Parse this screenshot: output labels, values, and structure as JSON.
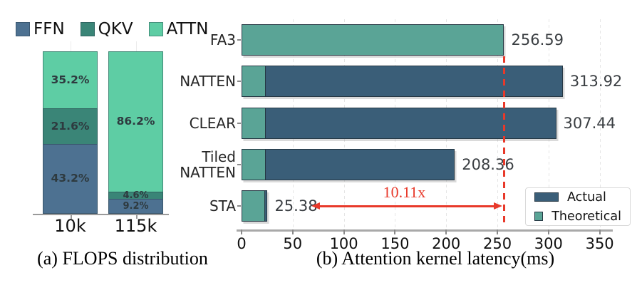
{
  "figure": {
    "background": "#ffffff"
  },
  "chart_data": [
    {
      "id": "flops-distribution",
      "type": "bar",
      "stacked": true,
      "orientation": "vertical",
      "title": "(a) FLOPS distribution",
      "categories": [
        "10k",
        "115k"
      ],
      "series": [
        {
          "name": "FFN",
          "color": "#4d7191",
          "values": [
            43.2,
            9.2
          ],
          "labels": [
            "43.2%",
            "9.2%"
          ]
        },
        {
          "name": "QKV",
          "color": "#3a8577",
          "values": [
            21.6,
            4.6
          ],
          "labels": [
            "21.6%",
            "4.6%"
          ]
        },
        {
          "name": "ATTN",
          "color": "#5ecda4",
          "values": [
            35.2,
            86.2
          ],
          "labels": [
            "35.2%",
            "86.2%"
          ]
        }
      ],
      "ylim": [
        0,
        100
      ],
      "legend_position": "top",
      "grid": false
    },
    {
      "id": "attention-kernel-latency",
      "type": "bar",
      "orientation": "horizontal",
      "title": "(b) Attention kernel latency(ms)",
      "categories": [
        "FA3",
        "NATTEN",
        "CLEAR",
        "Tiled NATTEN",
        "STA"
      ],
      "series": [
        {
          "name": "Actual",
          "color": "#3a5e78",
          "values": [
            256.59,
            313.92,
            307.44,
            208.36,
            25.38
          ]
        },
        {
          "name": "Theoretical",
          "color": "#5aa496",
          "values": [
            256.59,
            24,
            24,
            24,
            23
          ]
        }
      ],
      "bar_labels": [
        "256.59",
        "313.92",
        "307.44",
        "208.36",
        "25.38"
      ],
      "xlim": [
        0,
        360
      ],
      "xticks": [
        "0",
        "50",
        "100",
        "150",
        "200",
        "250",
        "300",
        "350"
      ],
      "grid": true,
      "legend_position": "lower-right",
      "annotation": {
        "label": "10.11x",
        "color": "#e8392a",
        "reference_value": 256.59,
        "from_value": 25.38
      }
    }
  ]
}
